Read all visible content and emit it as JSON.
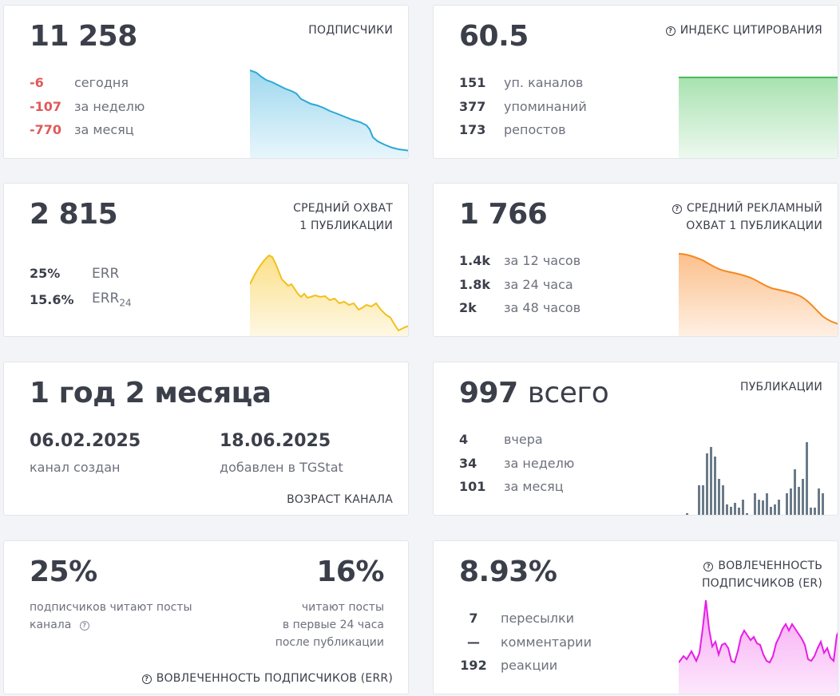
{
  "subscribers": {
    "value": "11 258",
    "caption": "ПОДПИСЧИКИ",
    "stats": [
      {
        "value": "-6",
        "label": "сегодня"
      },
      {
        "value": "-107",
        "label": "за неделю"
      },
      {
        "value": "-770",
        "label": "за месяц"
      }
    ],
    "color": "#2ba8d6"
  },
  "citation": {
    "value": "60.5",
    "caption": "ИНДЕКС ЦИТИРОВАНИЯ",
    "stats": [
      {
        "value": "151",
        "label": "уп. каналов"
      },
      {
        "value": "377",
        "label": "упоминаний"
      },
      {
        "value": "173",
        "label": "репостов"
      }
    ],
    "color": "#4cbb5b"
  },
  "reach": {
    "value": "2 815",
    "caption_line1": "СРЕДНИЙ ОХВАТ",
    "caption_line2": "1 ПУБЛИКАЦИИ",
    "stats": [
      {
        "value": "25%",
        "label": "ERR"
      },
      {
        "value": "15.6%",
        "label": "ERR",
        "sub": "24"
      }
    ],
    "color": "#f2c01e"
  },
  "ad_reach": {
    "value": "1 766",
    "caption_line1": "СРЕДНИЙ РЕКЛАМНЫЙ",
    "caption_line2": "ОХВАТ 1 ПУБЛИКАЦИИ",
    "stats": [
      {
        "value": "1.4k",
        "label": "за 12 часов"
      },
      {
        "value": "1.8k",
        "label": "за 24 часа"
      },
      {
        "value": "2k",
        "label": "за 48 часов"
      }
    ],
    "color": "#f5891f"
  },
  "age": {
    "value": "1 год 2 месяца",
    "created_date": "06.02.2025",
    "created_label": "канал создан",
    "added_date": "18.06.2025",
    "added_label": "добавлен в TGStat",
    "caption": "ВОЗРАСТ КАНАЛА"
  },
  "posts": {
    "value_num": "997",
    "value_word": "всего",
    "caption": "ПУБЛИКАЦИИ",
    "stats": [
      {
        "value": "4",
        "label": "вчера"
      },
      {
        "value": "34",
        "label": "за неделю"
      },
      {
        "value": "101",
        "label": "за месяц"
      }
    ],
    "color": "#6b7a88"
  },
  "err": {
    "value_left": "25%",
    "label_left_line1": "подписчиков читают посты",
    "label_left_line2": "канала",
    "value_right": "16%",
    "label_right_line1": "читают посты",
    "label_right_line2": "в первые 24 часа",
    "label_right_line3": "после публикации",
    "caption": "ВОВЛЕЧЕННОСТЬ ПОДПИСЧИКОВ (ERR)"
  },
  "er": {
    "value": "8.93%",
    "caption_line1": "ВОВЛЕЧЕННОСТЬ",
    "caption_line2": "ПОДПИСЧИКОВ (ER)",
    "stats": [
      {
        "value": "7",
        "label": "пересылки"
      },
      {
        "value": "—",
        "label": "комментарии"
      },
      {
        "value": "192",
        "label": "реакции"
      }
    ],
    "color": "#e61ee6"
  },
  "icons": {
    "question": "question-circle-icon"
  }
}
